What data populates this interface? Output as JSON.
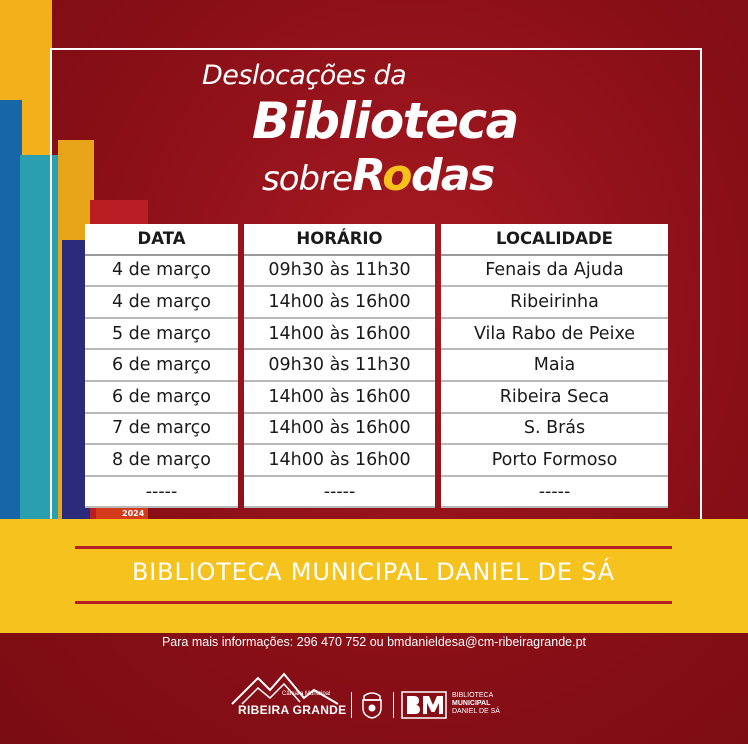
{
  "title": {
    "line1": "Deslocações da",
    "line2": "Biblioteca",
    "line3_prefix": "sobre",
    "line3_word_start": "R",
    "line3_word_dot": "o",
    "line3_word_end": "das"
  },
  "table": {
    "headers": [
      "DATA",
      "HORÁRIO",
      "LOCALIDADE"
    ],
    "rows": [
      [
        "4 de março",
        "09h30 às 11h30",
        "Fenais da Ajuda"
      ],
      [
        "4 de março",
        "14h00 às 16h00",
        "Ribeirinha"
      ],
      [
        "5 de março",
        "14h00 às 16h00",
        "Vila Rabo de Peixe"
      ],
      [
        "6 de março",
        "09h30 às 11h30",
        "Maia"
      ],
      [
        "6 de março",
        "14h00 às 16h00",
        "Ribeira Seca"
      ],
      [
        "7 de março",
        "14h00 às 16h00",
        "S. Brás"
      ],
      [
        "8 de março",
        "14h00 às 16h00",
        "Porto Formoso"
      ],
      [
        "-----",
        "-----",
        "-----"
      ]
    ]
  },
  "year": "2024",
  "library_name": "BIBLIOTECA MUNICIPAL DANIEL DE SÁ",
  "contact": "Para mais informações: 296 470 752 ou bmdanieldesa@cm-ribeiragrande.pt",
  "footer": {
    "municipality_small": "Câmara Municipal",
    "municipality_name": "RIBEIRA GRANDE",
    "bm_line1": "BIBLIOTECA",
    "bm_line2": "MUNICIPAL",
    "bm_line3": "DANIEL DE SÁ"
  },
  "colors": {
    "background": "#8e1018",
    "accent_yellow": "#f6c21d",
    "rule_red": "#b4202a",
    "text_white": "#ffffff"
  }
}
